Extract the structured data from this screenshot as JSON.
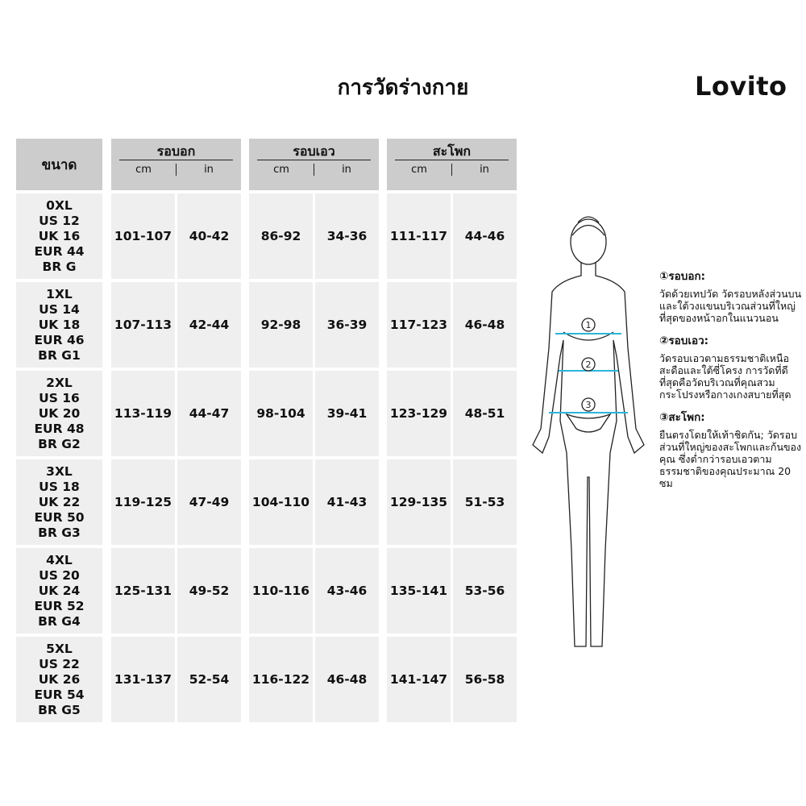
{
  "title": "การวัดร่างกาย",
  "brand": "Lovito",
  "headers": {
    "size": "ขนาด",
    "groups": [
      {
        "label": "รอบอก",
        "units": [
          "cm",
          "in"
        ]
      },
      {
        "label": "รอบเอว",
        "units": [
          "cm",
          "in"
        ]
      },
      {
        "label": "สะโพก",
        "units": [
          "cm",
          "in"
        ]
      }
    ]
  },
  "rows": [
    {
      "size": "0XL\nUS 12\nUK 16\nEUR 44\nBR G",
      "values": [
        "101-107",
        "40-42",
        "86-92",
        "34-36",
        "111-117",
        "44-46"
      ]
    },
    {
      "size": "1XL\nUS 14\nUK 18\nEUR 46\nBR G1",
      "values": [
        "107-113",
        "42-44",
        "92-98",
        "36-39",
        "117-123",
        "46-48"
      ]
    },
    {
      "size": "2XL\nUS 16\nUK 20\nEUR 48\nBR G2",
      "values": [
        "113-119",
        "44-47",
        "98-104",
        "39-41",
        "123-129",
        "48-51"
      ]
    },
    {
      "size": "3XL\nUS 18\nUK 22\nEUR 50\nBR G3",
      "values": [
        "119-125",
        "47-49",
        "104-110",
        "41-43",
        "129-135",
        "51-53"
      ]
    },
    {
      "size": "4XL\nUS 20\nUK 24\nEUR 52\nBR G4",
      "values": [
        "125-131",
        "49-52",
        "110-116",
        "43-46",
        "135-141",
        "53-56"
      ]
    },
    {
      "size": "5XL\nUS 22\nUK 26\nEUR 54\nBR G5",
      "values": [
        "131-137",
        "52-54",
        "116-122",
        "46-48",
        "141-147",
        "56-58"
      ]
    }
  ],
  "notes": [
    {
      "title": "①รอบอก:",
      "text": "วัดด้วยเทปวัด วัดรอบหลังส่วนบนและใต้วงแขนบริเวณส่วนที่ใหญ่ที่สุดของหน้าอกในแนวนอน"
    },
    {
      "title": "②รอบเอว:",
      "text": "วัดรอบเอวตามธรรมชาติเหนือสะดือและใต้ซี่โครง การวัดที่ดีที่สุดคือวัดบริเวณที่คุณสวมกระโปรงหรือกางเกงสบายที่สุด"
    },
    {
      "title": "③สะโพก:",
      "text": "ยืนตรงโดยให้เท้าชิดกัน; วัดรอบส่วนที่ใหญ่ของสะโพกและก้นของคุณ ซึ่งต่ำกว่ารอบเอวตามธรรมชาติของคุณประมาณ 20 ซม"
    }
  ],
  "figure_markers": [
    "1",
    "2",
    "3"
  ],
  "colors": {
    "header_bg": "#cccccc",
    "cell_bg": "#efefef",
    "measure_line": "#2bb5d8"
  }
}
